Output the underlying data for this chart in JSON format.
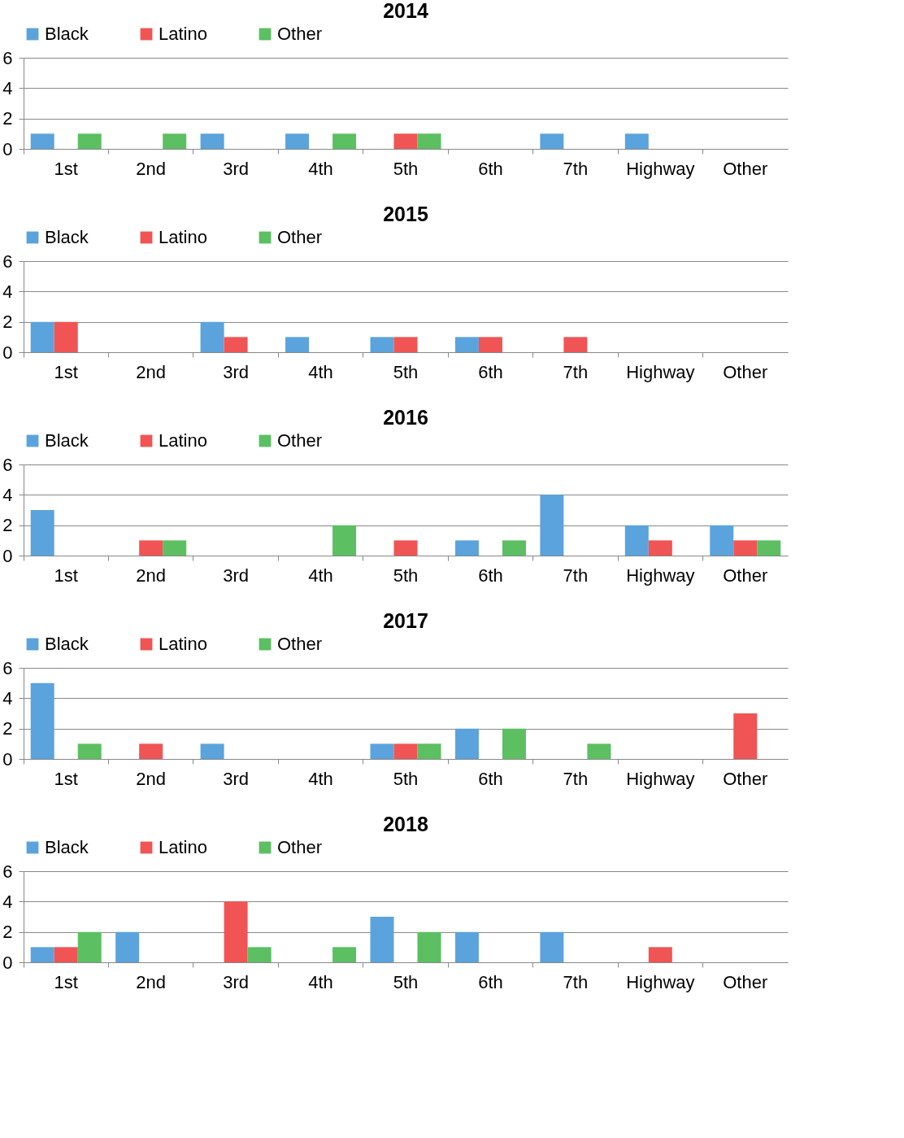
{
  "chart_data": [
    {
      "type": "bar",
      "title": "2014",
      "categories": [
        "1st",
        "2nd",
        "3rd",
        "4th",
        "5th",
        "6th",
        "7th",
        "Highway",
        "Other"
      ],
      "ylim": [
        0,
        6
      ],
      "yticks": [
        0,
        2,
        4,
        6
      ],
      "grid": "y",
      "legend": "top",
      "series": [
        {
          "name": "Black",
          "color": "#5ba3dc",
          "values": [
            1,
            0,
            1,
            1,
            0,
            0,
            1,
            1,
            0
          ]
        },
        {
          "name": "Latino",
          "color": "#f05454",
          "values": [
            0,
            0,
            0,
            0,
            1,
            0,
            0,
            0,
            0
          ]
        },
        {
          "name": "Other",
          "color": "#5cbf62",
          "values": [
            1,
            1,
            0,
            1,
            1,
            0,
            0,
            0,
            0
          ]
        }
      ]
    },
    {
      "type": "bar",
      "title": "2015",
      "categories": [
        "1st",
        "2nd",
        "3rd",
        "4th",
        "5th",
        "6th",
        "7th",
        "Highway",
        "Other"
      ],
      "ylim": [
        0,
        6
      ],
      "yticks": [
        0,
        2,
        4,
        6
      ],
      "grid": "y",
      "legend": "top",
      "series": [
        {
          "name": "Black",
          "color": "#5ba3dc",
          "values": [
            2,
            0,
            2,
            1,
            1,
            1,
            0,
            0,
            0
          ]
        },
        {
          "name": "Latino",
          "color": "#f05454",
          "values": [
            2,
            0,
            1,
            0,
            1,
            1,
            1,
            0,
            0
          ]
        },
        {
          "name": "Other",
          "color": "#5cbf62",
          "values": [
            0,
            0,
            0,
            0,
            0,
            0,
            0,
            0,
            0
          ]
        }
      ]
    },
    {
      "type": "bar",
      "title": "2016",
      "categories": [
        "1st",
        "2nd",
        "3rd",
        "4th",
        "5th",
        "6th",
        "7th",
        "Highway",
        "Other"
      ],
      "ylim": [
        0,
        6
      ],
      "yticks": [
        0,
        2,
        4,
        6
      ],
      "grid": "y",
      "legend": "top",
      "series": [
        {
          "name": "Black",
          "color": "#5ba3dc",
          "values": [
            3,
            0,
            0,
            0,
            0,
            1,
            4,
            2,
            2
          ]
        },
        {
          "name": "Latino",
          "color": "#f05454",
          "values": [
            0,
            1,
            0,
            0,
            1,
            0,
            0,
            1,
            1
          ]
        },
        {
          "name": "Other",
          "color": "#5cbf62",
          "values": [
            0,
            1,
            0,
            2,
            0,
            1,
            0,
            0,
            1
          ]
        }
      ]
    },
    {
      "type": "bar",
      "title": "2017",
      "categories": [
        "1st",
        "2nd",
        "3rd",
        "4th",
        "5th",
        "6th",
        "7th",
        "Highway",
        "Other"
      ],
      "ylim": [
        0,
        6
      ],
      "yticks": [
        0,
        2,
        4,
        6
      ],
      "grid": "y",
      "legend": "top",
      "series": [
        {
          "name": "Black",
          "color": "#5ba3dc",
          "values": [
            5,
            0,
            1,
            0,
            1,
            2,
            0,
            0,
            0
          ]
        },
        {
          "name": "Latino",
          "color": "#f05454",
          "values": [
            0,
            1,
            0,
            0,
            1,
            0,
            0,
            0,
            3
          ]
        },
        {
          "name": "Other",
          "color": "#5cbf62",
          "values": [
            1,
            0,
            0,
            0,
            1,
            2,
            1,
            0,
            0
          ]
        }
      ]
    },
    {
      "type": "bar",
      "title": "2018",
      "categories": [
        "1st",
        "2nd",
        "3rd",
        "4th",
        "5th",
        "6th",
        "7th",
        "Highway",
        "Other"
      ],
      "ylim": [
        0,
        6
      ],
      "yticks": [
        0,
        2,
        4,
        6
      ],
      "grid": "y",
      "legend": "top",
      "series": [
        {
          "name": "Black",
          "color": "#5ba3dc",
          "values": [
            1,
            2,
            0,
            0,
            3,
            2,
            2,
            0,
            0
          ]
        },
        {
          "name": "Latino",
          "color": "#f05454",
          "values": [
            1,
            0,
            4,
            0,
            0,
            0,
            0,
            1,
            0
          ]
        },
        {
          "name": "Other",
          "color": "#5cbf62",
          "values": [
            2,
            0,
            1,
            1,
            2,
            0,
            0,
            0,
            0
          ]
        }
      ]
    }
  ]
}
